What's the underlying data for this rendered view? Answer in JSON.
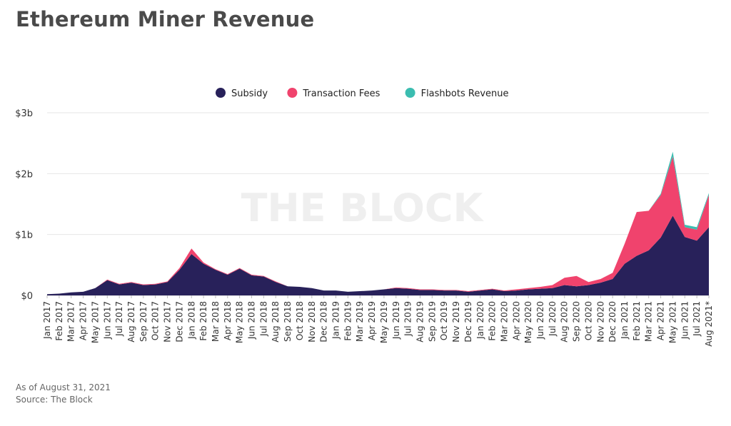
{
  "title": "Ethereum Miner Revenue",
  "footer": {
    "as_of": "As of August 31, 2021",
    "source": "Source: The Block"
  },
  "watermark": "THE BLOCK",
  "chart_data": {
    "type": "area",
    "stacked": true,
    "legend_position": "top-center",
    "grid": true,
    "y_ticks": [
      {
        "value": 0,
        "label": "$0"
      },
      {
        "value": 1,
        "label": "$1b"
      },
      {
        "value": 2,
        "label": "$2b"
      },
      {
        "value": 3,
        "label": "$3b"
      }
    ],
    "ylim": [
      0,
      3
    ],
    "categories": [
      "Jan 2017",
      "Feb 2017",
      "Mar 2017",
      "Apr 2017",
      "May 2017",
      "Jun 2017",
      "Jul 2017",
      "Aug 2017",
      "Sep 2017",
      "Oct 2017",
      "Nov 2017",
      "Dec 2017",
      "Jan 2018",
      "Feb 2018",
      "Mar 2018",
      "Apr 2018",
      "May 2018",
      "Jun 2018",
      "Jul 2018",
      "Aug 2018",
      "Sep 2018",
      "Oct 2018",
      "Nov 2018",
      "Dec 2018",
      "Jan 2019",
      "Feb 2019",
      "Mar 2019",
      "Apr 2019",
      "May 2019",
      "Jun 2019",
      "Jul 2019",
      "Aug 2019",
      "Sep 2019",
      "Oct 2019",
      "Nov 2019",
      "Dec 2019",
      "Jan 2020",
      "Feb 2020",
      "Mar 2020",
      "Apr 2020",
      "May 2020",
      "Jun 2020",
      "Jul 2020",
      "Aug 2020",
      "Sep 2020",
      "Oct 2020",
      "Nov 2020",
      "Dec 2020",
      "Jan 2021",
      "Feb 2021",
      "Mar 2021",
      "Apr 2021",
      "May 2021",
      "Jun 2021",
      "Jul 2021",
      "Aug 2021*"
    ],
    "series": [
      {
        "name": "Subsidy",
        "color": "#28215a",
        "values": [
          0.02,
          0.03,
          0.05,
          0.06,
          0.12,
          0.25,
          0.18,
          0.21,
          0.17,
          0.18,
          0.22,
          0.42,
          0.68,
          0.52,
          0.42,
          0.34,
          0.44,
          0.33,
          0.31,
          0.22,
          0.15,
          0.14,
          0.12,
          0.08,
          0.08,
          0.06,
          0.07,
          0.08,
          0.1,
          0.12,
          0.11,
          0.09,
          0.09,
          0.08,
          0.08,
          0.06,
          0.08,
          0.1,
          0.07,
          0.08,
          0.1,
          0.11,
          0.12,
          0.17,
          0.15,
          0.17,
          0.21,
          0.27,
          0.52,
          0.65,
          0.74,
          0.95,
          1.31,
          0.96,
          0.9,
          1.12
        ]
      },
      {
        "name": "Transaction Fees",
        "color": "#f0436d",
        "values": [
          0.0,
          0.0,
          0.0,
          0.0,
          0.0,
          0.01,
          0.01,
          0.01,
          0.01,
          0.01,
          0.01,
          0.03,
          0.09,
          0.02,
          0.01,
          0.01,
          0.01,
          0.01,
          0.01,
          0.01,
          0.0,
          0.0,
          0.0,
          0.0,
          0.0,
          0.0,
          0.0,
          0.0,
          0.0,
          0.01,
          0.01,
          0.01,
          0.01,
          0.01,
          0.01,
          0.01,
          0.01,
          0.01,
          0.01,
          0.02,
          0.02,
          0.03,
          0.05,
          0.12,
          0.17,
          0.05,
          0.06,
          0.1,
          0.33,
          0.72,
          0.65,
          0.7,
          0.97,
          0.16,
          0.18,
          0.53
        ]
      },
      {
        "name": "Flashbots Revenue",
        "color": "#3bbdb0",
        "values": [
          0,
          0,
          0,
          0,
          0,
          0,
          0,
          0,
          0,
          0,
          0,
          0,
          0,
          0,
          0,
          0,
          0,
          0,
          0,
          0,
          0,
          0,
          0,
          0,
          0,
          0,
          0,
          0,
          0,
          0,
          0,
          0,
          0,
          0,
          0,
          0,
          0,
          0,
          0,
          0,
          0,
          0,
          0,
          0,
          0,
          0,
          0,
          0,
          0,
          0,
          0,
          0.02,
          0.08,
          0.04,
          0.04,
          0.03
        ]
      }
    ]
  }
}
